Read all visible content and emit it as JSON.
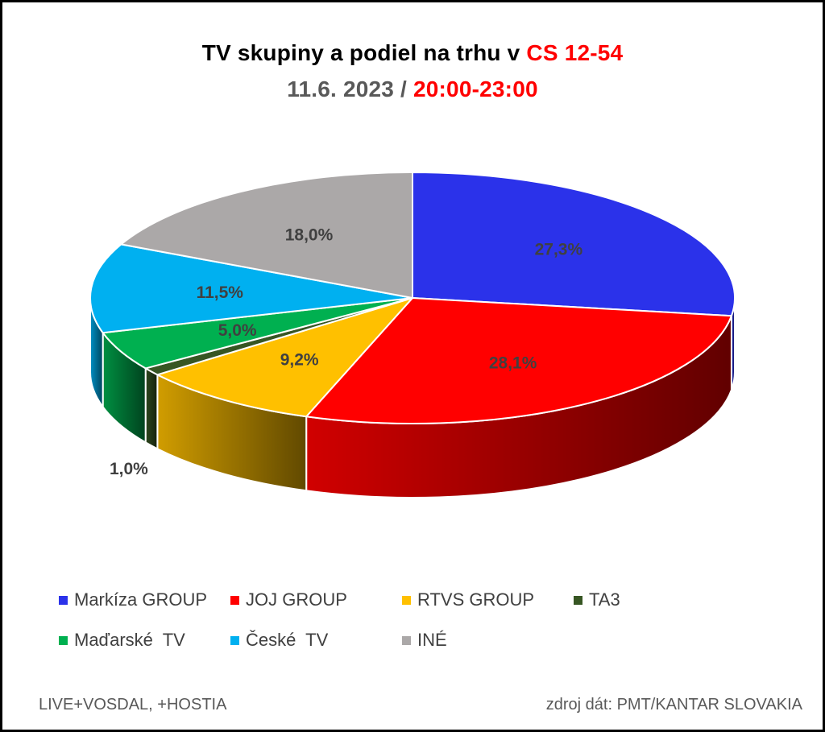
{
  "title": {
    "line1_text": "TV skupiny a podiel na trhu v ",
    "line1_highlight": "CS 12-54",
    "line2_text": "11.6. 2023 / ",
    "line2_highlight": "20:00-23:00"
  },
  "chart_data": {
    "type": "pie",
    "style": "3d",
    "slices": [
      {
        "name": "Markíza GROUP",
        "value": 27.3,
        "label": "27,3%",
        "color": "#2b32ea",
        "label_color": "#404040"
      },
      {
        "name": "JOJ GROUP",
        "value": 28.1,
        "label": "28,1%",
        "color": "#ff0000",
        "label_color": "#404040"
      },
      {
        "name": "RTVS GROUP",
        "value": 9.2,
        "label": "9,2%",
        "color": "#ffc000",
        "label_color": "#404040"
      },
      {
        "name": "TA3",
        "value": 1.0,
        "label": "1,0%",
        "color": "#375623",
        "label_color": "#404040"
      },
      {
        "name": "Maďarské  TV",
        "value": 5.0,
        "label": "5,0%",
        "color": "#00b050",
        "label_color": "#404040"
      },
      {
        "name": "České  TV",
        "value": 11.5,
        "label": "11,5%",
        "color": "#00b0f0",
        "label_color": "#404040"
      },
      {
        "name": "INÉ",
        "value": 18.0,
        "label": "18,0%",
        "color": "#aba8a8",
        "label_color": "#404040"
      }
    ],
    "legend_position": "bottom"
  },
  "footer": {
    "left": "LIVE+VOSDAL, +HOSTIA",
    "right": "zdroj dát: PMT/KANTAR SLOVAKIA"
  }
}
